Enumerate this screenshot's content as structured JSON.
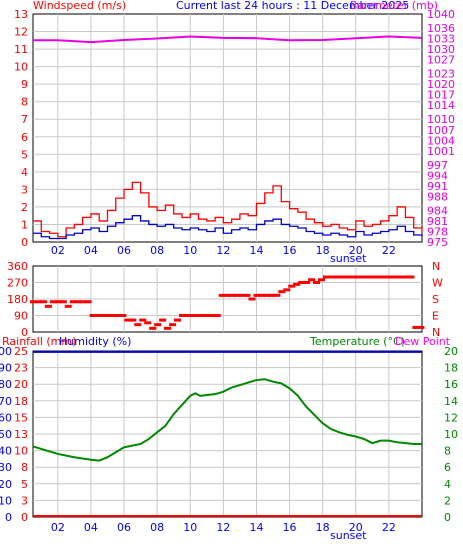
{
  "header": {
    "wind_label": "Windspeed (m/s)",
    "title": "Current last 24 hours : 11 December 2025",
    "baro_label": "Barometer (mb)"
  },
  "x_axis": {
    "ticks": [
      "02",
      "04",
      "06",
      "08",
      "10",
      "12",
      "14",
      "16",
      "18",
      "20",
      "22"
    ],
    "event_label": "sunset"
  },
  "colors": {
    "red": "#ff0000",
    "blue": "#0000cc",
    "magenta": "#e600e6",
    "green": "#008800",
    "grid": "#c8c8c8",
    "axis_blue": "#0000ff"
  },
  "chart_data": [
    {
      "name": "wind-barometer",
      "type": "line",
      "title": "Current last 24 hours : 11 December 2025",
      "y_left": {
        "label": "Windspeed (m/s)",
        "ticks": [
          0,
          1,
          2,
          3,
          4,
          5,
          6,
          7,
          8,
          9,
          10,
          11,
          12,
          13
        ],
        "range": [
          0,
          13
        ]
      },
      "y_right": {
        "label": "Barometer (mb)",
        "ticks": [
          975,
          978,
          981,
          984,
          988,
          991,
          994,
          997,
          1001,
          1004,
          1007,
          1010,
          1014,
          1017,
          1020,
          1023,
          1027,
          1030,
          1033,
          1036,
          1040
        ]
      },
      "x_range": [
        0.5,
        24.0
      ],
      "series": [
        {
          "name": "Barometer",
          "color": "#e600e6",
          "x": [
            0.5,
            2,
            4,
            6,
            8,
            10,
            12,
            14,
            16,
            18,
            20,
            22,
            24
          ],
          "values": [
            1032.5,
            1032.5,
            1032.0,
            1032.6,
            1033.0,
            1033.6,
            1033.2,
            1033.1,
            1032.5,
            1032.6,
            1033.1,
            1033.6,
            1033.2
          ]
        },
        {
          "name": "Wind gust",
          "color": "#ff0000",
          "x": [
            0.5,
            1,
            1.5,
            2,
            2.5,
            3,
            3.5,
            4,
            4.5,
            5,
            5.5,
            6,
            6.5,
            7,
            7.5,
            8,
            8.5,
            9,
            9.5,
            10,
            10.5,
            11,
            11.5,
            12,
            12.5,
            13,
            13.5,
            14,
            14.5,
            15,
            15.5,
            16,
            16.5,
            17,
            17.5,
            18,
            18.5,
            19,
            19.5,
            20,
            20.5,
            21,
            21.5,
            22,
            22.5,
            23,
            23.5,
            24
          ],
          "values": [
            1.2,
            0.6,
            0.5,
            0.3,
            0.8,
            1.0,
            1.4,
            1.6,
            1.2,
            1.8,
            2.5,
            3.0,
            3.4,
            2.8,
            2.0,
            1.8,
            2.1,
            1.6,
            1.4,
            1.6,
            1.3,
            1.2,
            1.4,
            1.1,
            1.3,
            1.6,
            1.5,
            2.2,
            2.8,
            3.2,
            2.3,
            1.9,
            1.7,
            1.3,
            1.1,
            0.9,
            1.0,
            0.8,
            0.7,
            1.2,
            0.9,
            1.0,
            1.2,
            1.5,
            2.0,
            1.4,
            0.8,
            0.6
          ]
        },
        {
          "name": "Wind average",
          "color": "#0000cc",
          "x": [
            0.5,
            1,
            1.5,
            2,
            2.5,
            3,
            3.5,
            4,
            4.5,
            5,
            5.5,
            6,
            6.5,
            7,
            7.5,
            8,
            8.5,
            9,
            9.5,
            10,
            10.5,
            11,
            11.5,
            12,
            12.5,
            13,
            13.5,
            14,
            14.5,
            15,
            15.5,
            16,
            16.5,
            17,
            17.5,
            18,
            18.5,
            19,
            19.5,
            20,
            20.5,
            21,
            21.5,
            22,
            22.5,
            23,
            23.5,
            24
          ],
          "values": [
            0.5,
            0.3,
            0.2,
            0.2,
            0.4,
            0.5,
            0.7,
            0.8,
            0.6,
            0.9,
            1.1,
            1.3,
            1.5,
            1.2,
            1.0,
            0.9,
            1.0,
            0.8,
            0.7,
            0.8,
            0.7,
            0.6,
            0.8,
            0.5,
            0.7,
            0.8,
            0.7,
            1.0,
            1.2,
            1.3,
            1.0,
            0.9,
            0.8,
            0.6,
            0.5,
            0.4,
            0.5,
            0.4,
            0.3,
            0.6,
            0.4,
            0.5,
            0.6,
            0.7,
            0.9,
            0.6,
            0.4,
            0.3
          ]
        }
      ]
    },
    {
      "name": "wind-direction",
      "type": "scatter",
      "y_left": {
        "ticks": [
          0,
          90,
          180,
          270,
          360
        ],
        "range": [
          0,
          360
        ]
      },
      "y_right": {
        "ticks": [
          "N",
          "E",
          "S",
          "W",
          "N"
        ]
      },
      "x_range": [
        0.5,
        24.0
      ],
      "series": [
        {
          "name": "Wind direction",
          "color": "#ff0000",
          "x": [
            0.5,
            0.8,
            1.1,
            1.4,
            1.7,
            2.0,
            2.3,
            2.6,
            2.9,
            3.2,
            3.5,
            3.8,
            4.1,
            4.4,
            4.7,
            5.0,
            5.3,
            5.6,
            5.9,
            6.2,
            6.5,
            6.8,
            7.1,
            7.4,
            7.7,
            8.0,
            8.3,
            8.6,
            8.9,
            9.2,
            9.5,
            9.8,
            10.1,
            10.4,
            10.7,
            11.0,
            11.3,
            11.6,
            11.9,
            12.2,
            12.5,
            12.8,
            13.1,
            13.4,
            13.7,
            14.0,
            14.3,
            14.6,
            14.9,
            15.2,
            15.5,
            15.8,
            16.1,
            16.4,
            16.7,
            17.0,
            17.3,
            17.6,
            17.9,
            18.2,
            18.5,
            18.8,
            19.1,
            19.4,
            19.7,
            20.0,
            20.3,
            20.6,
            20.9,
            21.2,
            21.5,
            21.8,
            22.1,
            22.4,
            22.7,
            23.0,
            23.3,
            23.6,
            23.9
          ],
          "values": [
            165,
            165,
            165,
            140,
            165,
            165,
            165,
            140,
            165,
            165,
            165,
            165,
            90,
            90,
            90,
            90,
            90,
            90,
            90,
            65,
            65,
            40,
            65,
            50,
            20,
            40,
            65,
            20,
            40,
            65,
            90,
            90,
            90,
            90,
            90,
            90,
            90,
            90,
            200,
            200,
            200,
            200,
            200,
            200,
            180,
            200,
            200,
            200,
            200,
            200,
            220,
            230,
            250,
            260,
            270,
            270,
            285,
            270,
            285,
            300,
            300,
            300,
            300,
            300,
            300,
            300,
            300,
            300,
            300,
            300,
            300,
            300,
            300,
            300,
            300,
            300,
            300,
            25,
            25
          ]
        }
      ]
    },
    {
      "name": "rain-humidity-temp",
      "type": "line",
      "labels": {
        "rainfall": "Rainfall (mm)",
        "humidity": "Humidity (%)",
        "temperature": "Temperature (°C)",
        "dewpoint": "Dew Point"
      },
      "y_left_humidity": {
        "ticks": [
          0,
          10,
          20,
          30,
          40,
          50,
          60,
          70,
          80,
          90,
          100
        ]
      },
      "y_left_rain": {
        "ticks": [
          0,
          3,
          5,
          8,
          10,
          13,
          15,
          18,
          20,
          23,
          25
        ]
      },
      "y_right_temp": {
        "ticks": [
          0,
          2,
          4,
          6,
          8,
          10,
          12,
          14,
          16,
          18,
          20
        ],
        "range": [
          0,
          20
        ]
      },
      "x_range": [
        0.5,
        24.0
      ],
      "series": [
        {
          "name": "Humidity",
          "color": "#0000cc",
          "x": [
            0.5,
            24.0
          ],
          "values": [
            99.5,
            99.5
          ]
        },
        {
          "name": "Rainfall",
          "color": "#ff0000",
          "x": [
            0.5,
            24.0
          ],
          "values": [
            0,
            0
          ]
        },
        {
          "name": "Temperature",
          "color": "#008800",
          "x": [
            0.5,
            1,
            2,
            3,
            4,
            4.5,
            5,
            5.5,
            6,
            6.5,
            7,
            7.5,
            8,
            8.5,
            9,
            9.5,
            10,
            10.3,
            10.6,
            11,
            11.5,
            12,
            12.5,
            13,
            13.5,
            14,
            14.5,
            15,
            15.5,
            16,
            16.5,
            17,
            17.5,
            18,
            18.5,
            19,
            19.5,
            20,
            20.5,
            21,
            21.5,
            22,
            22.5,
            23,
            23.5,
            24
          ],
          "values": [
            8.5,
            8.2,
            7.6,
            7.2,
            6.9,
            6.8,
            7.2,
            7.8,
            8.4,
            8.6,
            8.8,
            9.4,
            10.2,
            11.0,
            12.4,
            13.5,
            14.6,
            14.9,
            14.6,
            14.7,
            14.8,
            15.1,
            15.6,
            15.9,
            16.2,
            16.5,
            16.6,
            16.3,
            16.1,
            15.5,
            14.6,
            13.3,
            12.3,
            11.3,
            10.6,
            10.2,
            9.9,
            9.7,
            9.4,
            8.9,
            9.2,
            9.2,
            9.0,
            8.9,
            8.8,
            8.8
          ]
        }
      ]
    }
  ]
}
